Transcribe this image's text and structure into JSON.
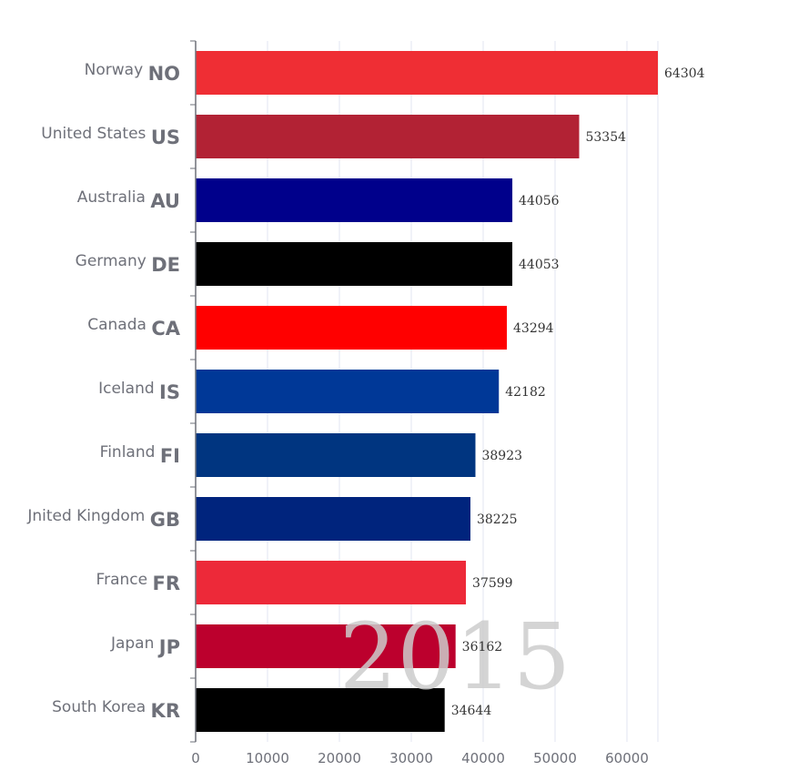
{
  "chart_data": {
    "type": "bar",
    "orientation": "horizontal",
    "watermark": "2015",
    "categories": [
      {
        "name": "Norway",
        "code": "NO",
        "value": 64304,
        "color": "#ef2e34"
      },
      {
        "name": "United States",
        "code": "US",
        "value": 53354,
        "color": "#b22234"
      },
      {
        "name": "Australia",
        "code": "AU",
        "value": 44056,
        "color": "#00008b"
      },
      {
        "name": "Germany",
        "code": "DE",
        "value": 44053,
        "color": "#000000"
      },
      {
        "name": "Canada",
        "code": "CA",
        "value": 43294,
        "color": "#ff0000"
      },
      {
        "name": "Iceland",
        "code": "IS",
        "value": 42182,
        "color": "#003897"
      },
      {
        "name": "Finland",
        "code": "FI",
        "value": 38923,
        "color": "#003580"
      },
      {
        "name": "Jnited Kingdom",
        "code": "GB",
        "value": 38225,
        "color": "#00247d"
      },
      {
        "name": "France",
        "code": "FR",
        "value": 37599,
        "color": "#ed2939"
      },
      {
        "name": "Japan",
        "code": "JP",
        "value": 36162,
        "color": "#bc002d"
      },
      {
        "name": "South Korea",
        "code": "KR",
        "value": 34644,
        "color": "#000000"
      }
    ],
    "x_ticks": [
      "0",
      "10000",
      "20000",
      "30000",
      "40000",
      "50000",
      "60000"
    ],
    "xlim": [
      0,
      64304
    ],
    "grid": true
  }
}
